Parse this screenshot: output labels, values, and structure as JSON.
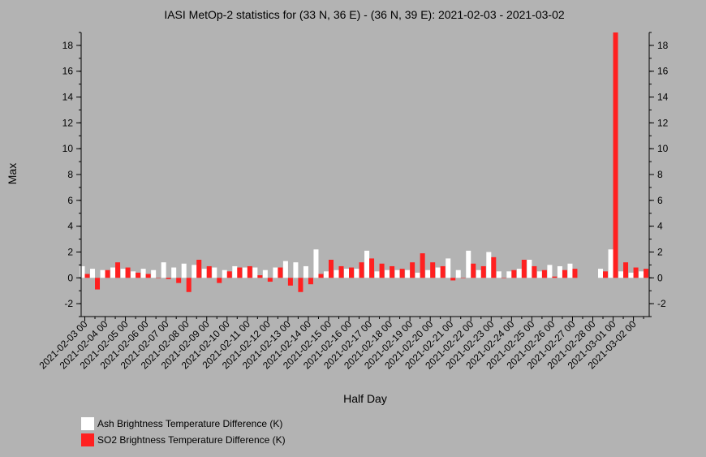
{
  "chart_data": {
    "type": "bar",
    "title": "IASI MetOp-2 statistics for (33 N, 36 E) - (36 N, 39 E): 2021-02-03 - 2021-03-02",
    "xlabel": "Half Day",
    "ylabel": "Max",
    "ylim": [
      -3,
      19
    ],
    "yticks": [
      -2,
      0,
      2,
      4,
      6,
      8,
      10,
      12,
      14,
      16,
      18
    ],
    "xtick_labels": [
      "2021-02-03 00",
      "2021-02-04 00",
      "2021-02-05 00",
      "2021-02-06 00",
      "2021-02-07 00",
      "2021-02-08 00",
      "2021-02-09 00",
      "2021-02-10 00",
      "2021-02-11 00",
      "2021-02-12 00",
      "2021-02-13 00",
      "2021-02-14 00",
      "2021-02-15 00",
      "2021-02-16 00",
      "2021-02-17 00",
      "2021-02-18 00",
      "2021-02-19 00",
      "2021-02-20 00",
      "2021-02-21 00",
      "2021-02-22 00",
      "2021-02-23 00",
      "2021-02-24 00",
      "2021-02-25 00",
      "2021-02-26 00",
      "2021-02-27 00",
      "2021-02-28 00",
      "2021-03-01 00",
      "2021-03-02 00"
    ],
    "n_periods": 56,
    "series": [
      {
        "name": "Ash Brightness Temperature Difference (K)",
        "color": "#ffffff",
        "values": [
          0.9,
          0.7,
          0.6,
          0.8,
          0.7,
          0.5,
          0.7,
          0.6,
          1.2,
          0.8,
          1.1,
          1.0,
          0.7,
          0.8,
          0.6,
          0.9,
          0.8,
          0.8,
          0.6,
          0.8,
          1.3,
          1.2,
          0.9,
          2.2,
          0.5,
          0.6,
          0.7,
          0.7,
          2.1,
          0.5,
          0.6,
          0.6,
          0.6,
          0.4,
          0.6,
          0.8,
          1.5,
          0.6,
          2.1,
          0.6,
          2.0,
          0.5,
          0.5,
          0.7,
          1.4,
          0.5,
          1.0,
          0.9,
          1.1,
          null,
          null,
          0.7,
          2.2,
          0.5,
          0.4,
          0.5
        ]
      },
      {
        "name": "SO2 Brightness Temperature Difference (K)",
        "color": "#ff2020",
        "values": [
          0.3,
          -0.9,
          0.6,
          1.2,
          0.8,
          0.4,
          0.3,
          0.0,
          -0.1,
          -0.4,
          -1.1,
          1.4,
          0.9,
          -0.4,
          0.5,
          0.8,
          0.9,
          0.2,
          -0.3,
          0.8,
          -0.6,
          -1.1,
          -0.5,
          0.3,
          1.4,
          0.9,
          0.8,
          1.2,
          1.5,
          1.1,
          0.9,
          0.7,
          1.2,
          1.9,
          1.2,
          0.9,
          -0.2,
          0.0,
          1.1,
          0.9,
          1.6,
          0.0,
          0.6,
          1.4,
          0.9,
          0.6,
          0.1,
          0.6,
          0.7,
          null,
          null,
          0.5,
          19.0,
          1.2,
          0.8,
          0.7
        ]
      }
    ],
    "grid": false,
    "legend_position": "bottom-left"
  }
}
